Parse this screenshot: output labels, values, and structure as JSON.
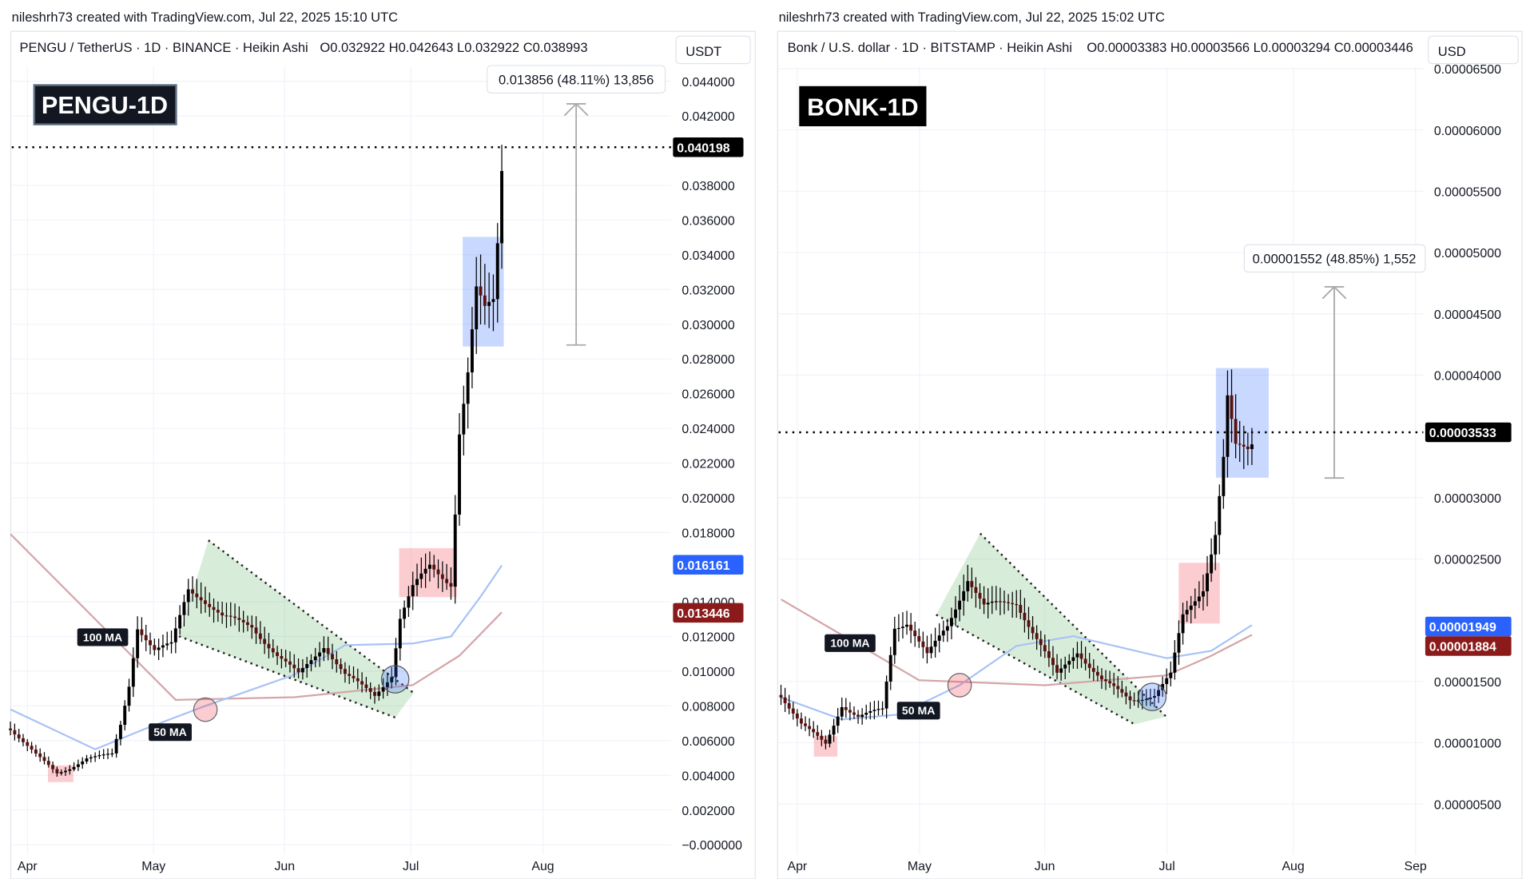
{
  "chart_data": [
    {
      "type": "candlestick",
      "credit": "nileshrh73 created with TradingView.com, Jul 22, 2025 15:10 UTC",
      "legend": "PENGU / TetherUS · 1D · BINANCE · Heikin Ashi",
      "ohlc": {
        "o": "O0.032922",
        "h": "H0.042643",
        "l": "L0.032922",
        "c": "C0.038993"
      },
      "currency": "USDT",
      "title_badge": "PENGU-1D",
      "ylim": [
        0,
        0.044
      ],
      "y_ticks": [
        "0.044000",
        "0.042000",
        "0.038000",
        "0.036000",
        "0.034000",
        "0.032000",
        "0.030000",
        "0.028000",
        "0.026000",
        "0.024000",
        "0.022000",
        "0.020000",
        "0.018000",
        "0.014000",
        "0.012000",
        "0.010000",
        "0.008000",
        "0.006000",
        "0.004000",
        "0.002000",
        "−0.000000"
      ],
      "x_ticks": [
        "Apr",
        "May",
        "Jun",
        "Jul",
        "Aug"
      ],
      "x_range": [
        "2025-03-28",
        "2025-08-15"
      ],
      "price_points": [
        [
          "2025-03-28",
          0.0067
        ],
        [
          "2025-04-03",
          0.0052
        ],
        [
          "2025-04-08",
          0.0041
        ],
        [
          "2025-04-11",
          0.0044
        ],
        [
          "2025-04-15",
          0.005
        ],
        [
          "2025-04-21",
          0.0052
        ],
        [
          "2025-04-23",
          0.0069
        ],
        [
          "2025-04-25",
          0.0092
        ],
        [
          "2025-04-27",
          0.0126
        ],
        [
          "2025-05-01",
          0.0112
        ],
        [
          "2025-05-05",
          0.0115
        ],
        [
          "2025-05-09",
          0.0148
        ],
        [
          "2025-05-12",
          0.0143
        ],
        [
          "2025-05-17",
          0.0131
        ],
        [
          "2025-05-24",
          0.0126
        ],
        [
          "2025-05-30",
          0.0109
        ],
        [
          "2025-06-04",
          0.0098
        ],
        [
          "2025-06-10",
          0.0115
        ],
        [
          "2025-06-15",
          0.0098
        ],
        [
          "2025-06-22",
          0.0086
        ],
        [
          "2025-06-26",
          0.0098
        ],
        [
          "2025-06-28",
          0.0131
        ],
        [
          "2025-07-01",
          0.0148
        ],
        [
          "2025-07-05",
          0.016
        ],
        [
          "2025-07-10",
          0.0151
        ],
        [
          "2025-07-11",
          0.0193
        ],
        [
          "2025-07-12",
          0.0239
        ],
        [
          "2025-07-14",
          0.0272
        ],
        [
          "2025-07-16",
          0.0318
        ],
        [
          "2025-07-18",
          0.0306
        ],
        [
          "2025-07-20",
          0.0312
        ],
        [
          "2025-07-21",
          0.0346
        ],
        [
          "2025-07-22",
          0.039
        ]
      ],
      "ma100": {
        "label": "100 MA",
        "color": "#d4a5a8",
        "points": [
          [
            "2025-03-28",
            0.0179
          ],
          [
            "2025-05-06",
            0.00835
          ],
          [
            "2025-06-03",
            0.0085
          ],
          [
            "2025-07-01",
            0.0092
          ],
          [
            "2025-07-12",
            0.0109
          ],
          [
            "2025-07-22",
            0.0134
          ]
        ]
      },
      "ma50": {
        "label": "50 MA",
        "color": "#a8c2f5",
        "points": [
          [
            "2025-03-28",
            0.0078
          ],
          [
            "2025-04-17",
            0.0055
          ],
          [
            "2025-04-29",
            0.0067
          ],
          [
            "2025-05-13",
            0.008
          ],
          [
            "2025-06-03",
            0.0098
          ],
          [
            "2025-06-15",
            0.0115
          ],
          [
            "2025-07-01",
            0.0116
          ],
          [
            "2025-07-10",
            0.012
          ],
          [
            "2025-07-17",
            0.0143
          ],
          [
            "2025-07-22",
            0.0161
          ]
        ]
      },
      "last_price": {
        "label": "0.040198",
        "value": 0.040198,
        "color": "#000000"
      },
      "ma50_label": {
        "label": "0.016161",
        "color": "#2962ff"
      },
      "ma100_label": {
        "label": "0.013446",
        "color": "#8b1a1a"
      },
      "measure": {
        "label": "0.013856 (48.11%) 13,856",
        "from": 0.0288,
        "to": 0.0427
      }
    },
    {
      "type": "candlestick",
      "credit": "nileshrh73 created with TradingView.com, Jul 22, 2025 15:02 UTC",
      "legend": "Bonk / U.S. dollar · 1D · BITSTAMP · Heikin Ashi",
      "ohlc": {
        "o": "O0.00003383",
        "h": "H0.00003566",
        "l": "L0.00003294",
        "c": "C0.00003446"
      },
      "currency": "USD",
      "title_badge": "BONK-1D",
      "ylim": [
        0,
        6.5e-05
      ],
      "y_ticks": [
        "0.00006500",
        "0.00006000",
        "0.00005500",
        "0.00005000",
        "0.00004500",
        "0.00004000",
        "0.00003000",
        "0.00002500",
        "0.00001500",
        "0.00001000",
        "0.00000500"
      ],
      "x_ticks": [
        "Apr",
        "May",
        "Jun",
        "Jul",
        "Aug",
        "Sep"
      ],
      "x_range": [
        "2025-03-28",
        "2025-09-02"
      ],
      "price_points": [
        [
          "2025-03-28",
          1.39e-05
        ],
        [
          "2025-04-02",
          1.15e-05
        ],
        [
          "2025-04-08",
          9.9e-06
        ],
        [
          "2025-04-12",
          1.31e-05
        ],
        [
          "2025-04-16",
          1.21e-05
        ],
        [
          "2025-04-22",
          1.27e-05
        ],
        [
          "2025-04-25",
          1.95e-05
        ],
        [
          "2025-04-28",
          1.99e-05
        ],
        [
          "2025-05-03",
          1.71e-05
        ],
        [
          "2025-05-08",
          1.95e-05
        ],
        [
          "2025-05-13",
          2.35e-05
        ],
        [
          "2025-05-17",
          2.11e-05
        ],
        [
          "2025-05-25",
          2.15e-05
        ],
        [
          "2025-05-31",
          1.79e-05
        ],
        [
          "2025-06-04",
          1.55e-05
        ],
        [
          "2025-06-09",
          1.75e-05
        ],
        [
          "2025-06-15",
          1.51e-05
        ],
        [
          "2025-06-22",
          1.35e-05
        ],
        [
          "2025-06-28",
          1.39e-05
        ],
        [
          "2025-07-02",
          1.55e-05
        ],
        [
          "2025-07-05",
          2.03e-05
        ],
        [
          "2025-07-10",
          2.27e-05
        ],
        [
          "2025-07-13",
          2.71e-05
        ],
        [
          "2025-07-15",
          3.31e-05
        ],
        [
          "2025-07-16",
          3.79e-05
        ],
        [
          "2025-07-18",
          3.39e-05
        ],
        [
          "2025-07-21",
          3.39e-05
        ],
        [
          "2025-07-22",
          3.45e-05
        ]
      ],
      "ma100": {
        "label": "100 MA",
        "color": "#d4a5a8",
        "points": [
          [
            "2025-03-28",
            2.17e-05
          ],
          [
            "2025-05-01",
            1.51e-05
          ],
          [
            "2025-06-01",
            1.47e-05
          ],
          [
            "2025-07-01",
            1.55e-05
          ],
          [
            "2025-07-12",
            1.71e-05
          ],
          [
            "2025-07-22",
            1.88e-05
          ]
        ]
      },
      "ma50": {
        "label": "50 MA",
        "color": "#a8c2f5",
        "points": [
          [
            "2025-03-28",
            1.37e-05
          ],
          [
            "2025-04-12",
            1.19e-05
          ],
          [
            "2025-04-26",
            1.23e-05
          ],
          [
            "2025-05-11",
            1.47e-05
          ],
          [
            "2025-05-25",
            1.79e-05
          ],
          [
            "2025-06-08",
            1.87e-05
          ],
          [
            "2025-07-01",
            1.69e-05
          ],
          [
            "2025-07-12",
            1.75e-05
          ],
          [
            "2025-07-22",
            1.96e-05
          ]
        ]
      },
      "last_price": {
        "label": "0.00003533",
        "value": 3.533e-05,
        "color": "#000000"
      },
      "ma50_label": {
        "label": "0.00001949",
        "color": "#2962ff"
      },
      "ma100_label": {
        "label": "0.00001884",
        "color": "#8b1a1a"
      },
      "measure": {
        "label": "0.00001552 (48.85%) 1,552",
        "from": 3.16e-05,
        "to": 4.72e-05
      }
    }
  ]
}
